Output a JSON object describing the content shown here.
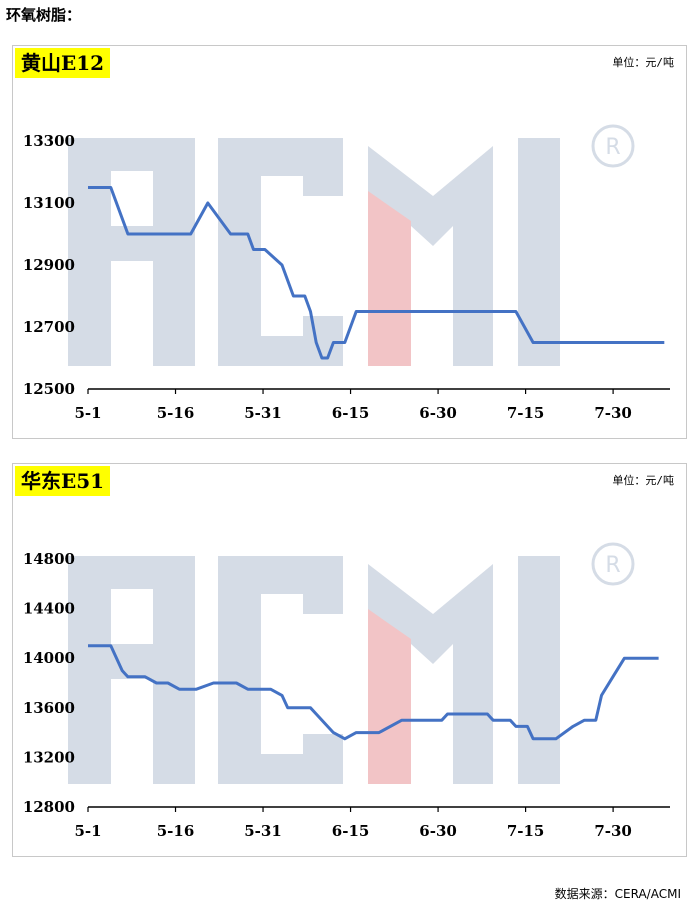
{
  "heading": "环氧树脂：",
  "source": "数据来源：CERA/ACMI",
  "colors": {
    "line": "#4472c4",
    "badge": "#ffff00",
    "watermark": "#d5dce6",
    "watermark_accent": "#f2c4c6"
  },
  "watermark_text": "ACMI",
  "chart_data": [
    {
      "type": "line",
      "title": "黄山E12",
      "unit": "单位：元/吨",
      "ylim": [
        12500,
        13300
      ],
      "yticks": [
        12500,
        12700,
        12900,
        13100,
        13300
      ],
      "xticks": [
        "5-1",
        "5-16",
        "5-31",
        "6-15",
        "6-30",
        "7-15",
        "7-30"
      ],
      "xlim": [
        0,
        102
      ],
      "x": [
        0,
        4,
        7,
        10,
        14,
        18,
        21,
        25,
        28,
        29,
        30,
        31,
        34,
        36,
        38,
        39,
        40,
        41,
        42,
        43,
        44,
        45,
        46,
        47,
        49,
        51,
        54,
        57,
        60,
        63,
        66,
        69,
        72,
        75,
        78,
        80,
        82,
        85,
        88,
        89,
        90,
        91,
        92,
        93,
        94,
        95,
        96,
        97,
        98,
        99,
        100,
        101
      ],
      "values": [
        13150,
        13150,
        13000,
        13000,
        13000,
        13000,
        13100,
        13000,
        13000,
        12950,
        12950,
        12950,
        12900,
        12800,
        12800,
        12750,
        12650,
        12600,
        12600,
        12650,
        12650,
        12650,
        12700,
        12750,
        12750,
        12750,
        12750,
        12750,
        12750,
        12750,
        12750,
        12750,
        12750,
        12750,
        12650,
        12650,
        12650,
        12650,
        12650,
        12650,
        12650,
        12650,
        12650,
        12650,
        12650,
        12650,
        12650,
        12650,
        12650,
        12650,
        12650,
        12650
      ]
    },
    {
      "type": "line",
      "title": "华东E51",
      "unit": "单位：元/吨",
      "ylim": [
        12800,
        14800
      ],
      "yticks": [
        12800,
        13200,
        13600,
        14000,
        14400,
        14800
      ],
      "xticks": [
        "5-1",
        "5-16",
        "5-31",
        "6-15",
        "6-30",
        "7-15",
        "7-30"
      ],
      "xlim": [
        0,
        102
      ],
      "x": [
        0,
        4,
        6,
        7,
        10,
        12,
        14,
        16,
        19,
        22,
        26,
        28,
        32,
        34,
        35,
        36,
        39,
        40,
        42,
        43,
        45,
        47,
        51,
        55,
        62,
        63,
        70,
        71,
        74,
        75,
        77,
        78,
        82,
        85,
        87,
        89,
        90,
        92,
        94,
        100
      ],
      "values": [
        14100,
        14100,
        13900,
        13850,
        13850,
        13800,
        13800,
        13750,
        13750,
        13800,
        13800,
        13750,
        13750,
        13700,
        13600,
        13600,
        13600,
        13550,
        13450,
        13400,
        13350,
        13400,
        13400,
        13500,
        13500,
        13550,
        13550,
        13500,
        13500,
        13450,
        13450,
        13350,
        13350,
        13450,
        13500,
        13500,
        13700,
        13850,
        14000,
        14000
      ]
    }
  ]
}
